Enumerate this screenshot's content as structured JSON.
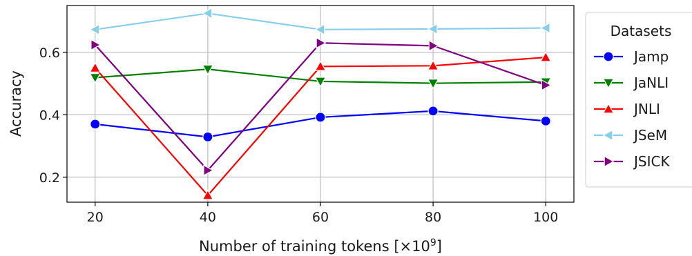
{
  "chart_data": {
    "type": "line",
    "title": "",
    "xlabel": "Number of training tokens [×10",
    "xlabel_superscript": "9",
    "xlabel_suffix": "]",
    "ylabel": "Accuracy",
    "x": [
      20,
      40,
      60,
      80,
      100
    ],
    "xticks": [
      "20",
      "40",
      "60",
      "80",
      "100"
    ],
    "yticks": [
      "0.2",
      "0.4",
      "0.6"
    ],
    "ytick_values": [
      0.2,
      0.4,
      0.6
    ],
    "xlim": [
      15,
      105
    ],
    "ylim": [
      0.12,
      0.75
    ],
    "grid": true,
    "legend": {
      "title": "Datasets",
      "placement": "outside-right"
    },
    "series": [
      {
        "name": "Jamp",
        "color": "#0000ff",
        "marker": "circle",
        "values": [
          0.37,
          0.329,
          0.392,
          0.412,
          0.38
        ]
      },
      {
        "name": "JaNLI",
        "color": "#008000",
        "marker": "triangle-down",
        "values": [
          0.519,
          0.546,
          0.507,
          0.501,
          0.505
        ]
      },
      {
        "name": "JNLI",
        "color": "#ff0000",
        "marker": "triangle-up",
        "values": [
          0.55,
          0.142,
          0.555,
          0.557,
          0.584
        ]
      },
      {
        "name": "JSeM",
        "color": "#87ceeb",
        "marker": "triangle-left",
        "values": [
          0.673,
          0.725,
          0.673,
          0.675,
          0.678
        ]
      },
      {
        "name": "JSICK",
        "color": "#800080",
        "marker": "triangle-right",
        "values": [
          0.624,
          0.222,
          0.63,
          0.621,
          0.495
        ]
      }
    ]
  }
}
